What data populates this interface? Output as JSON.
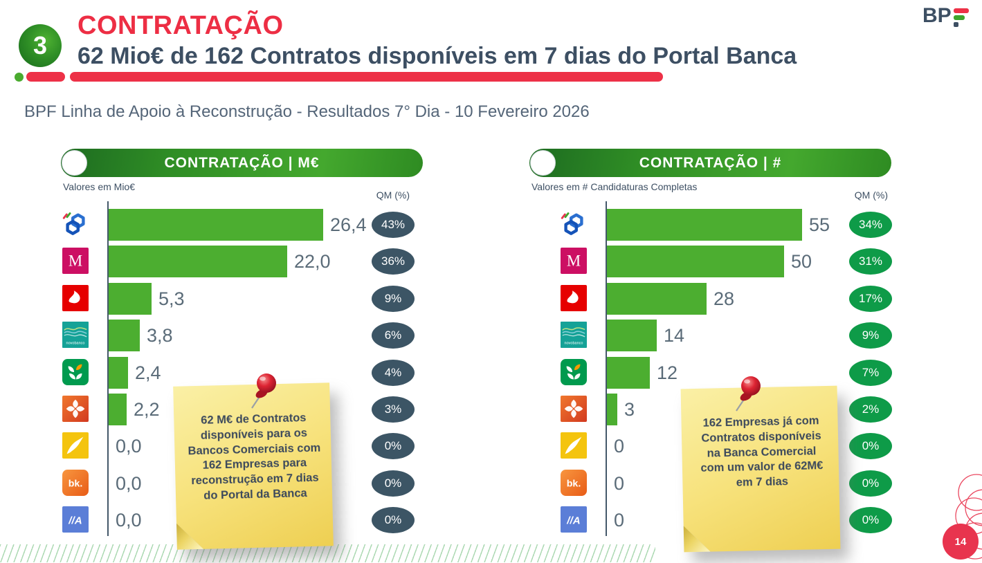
{
  "header": {
    "badge": "3",
    "title": "CONTRATAÇÃO",
    "subtitle": "62 Mio€ de 162 Contratos disponíveis em 7 dias do Portal Banca",
    "context": "BPF Linha de Apoio à Reconstrução - Resultados 7° Dia - 10 Fevereiro 2026",
    "brand": "BP"
  },
  "footer": {
    "page": "14"
  },
  "colors": {
    "accent_red": "#ed3147",
    "navy": "#3d4f63",
    "bar_green": "#4cae30",
    "qm_dark_badge": "#3c5565",
    "qm_green_badge": "#0e9b48",
    "note_yellow": "#f7e27c"
  },
  "chart_data": [
    {
      "type": "bar",
      "title": "CONTRATAÇÃO | M€",
      "units_label": "Valores em Mio€",
      "qm_header": "QM (%)",
      "qm_style": "dark",
      "xlim": [
        0,
        26.4
      ],
      "note": "62 M€ de Contratos disponíveis para os Bancos Comerciais com 162 Empresas para reconstrução em 7 dias do Portal da Banca",
      "banks": [
        {
          "name": "Caixa Geral de Depósitos",
          "icon": "cgd-logo",
          "value": 26.4,
          "label": "26,4",
          "qm": "43%"
        },
        {
          "name": "Millennium bcp",
          "icon": "millennium-logo",
          "value": 22.0,
          "label": "22,0",
          "qm": "36%"
        },
        {
          "name": "Santander",
          "icon": "santander-logo",
          "value": 5.3,
          "label": "5,3",
          "qm": "9%"
        },
        {
          "name": "Novo Banco",
          "icon": "novobanco-logo",
          "value": 3.8,
          "label": "3,8",
          "qm": "6%"
        },
        {
          "name": "Crédito Agrícola",
          "icon": "credito-agricola-logo",
          "value": 2.4,
          "label": "2,4",
          "qm": "4%"
        },
        {
          "name": "Montepio",
          "icon": "montepio-logo",
          "value": 2.2,
          "label": "2,2",
          "qm": "3%"
        },
        {
          "name": "EuroBic",
          "icon": "eurobic-logo",
          "value": 0.0,
          "label": "0,0",
          "qm": "0%"
        },
        {
          "name": "Bankinter",
          "icon": "bankinter-logo",
          "value": 0.0,
          "label": "0,0",
          "qm": "0%"
        },
        {
          "name": "Abanca",
          "icon": "abanca-logo",
          "value": 0.0,
          "label": "0,0",
          "qm": "0%"
        }
      ]
    },
    {
      "type": "bar",
      "title": "CONTRATAÇÃO | #",
      "units_label": "Valores em # Candidaturas Completas",
      "qm_header": "QM (%)",
      "qm_style": "green",
      "xlim": [
        0,
        55
      ],
      "note": "162 Empresas já com Contratos disponíveis na Banca Comercial com um valor de 62M€ em 7 dias",
      "banks": [
        {
          "name": "Caixa Geral de Depósitos",
          "icon": "cgd-logo",
          "value": 55,
          "label": "55",
          "qm": "34%"
        },
        {
          "name": "Millennium bcp",
          "icon": "millennium-logo",
          "value": 50,
          "label": "50",
          "qm": "31%"
        },
        {
          "name": "Santander",
          "icon": "santander-logo",
          "value": 28,
          "label": "28",
          "qm": "17%"
        },
        {
          "name": "Novo Banco",
          "icon": "novobanco-logo",
          "value": 14,
          "label": "14",
          "qm": "9%"
        },
        {
          "name": "Crédito Agrícola",
          "icon": "credito-agricola-logo",
          "value": 12,
          "label": "12",
          "qm": "7%"
        },
        {
          "name": "Montepio",
          "icon": "montepio-logo",
          "value": 3,
          "label": "3",
          "qm": "2%"
        },
        {
          "name": "EuroBic",
          "icon": "eurobic-logo",
          "value": 0,
          "label": "0",
          "qm": "0%"
        },
        {
          "name": "Bankinter",
          "icon": "bankinter-logo",
          "value": 0,
          "label": "0",
          "qm": "0%"
        },
        {
          "name": "Abanca",
          "icon": "abanca-logo",
          "value": 0,
          "label": "0",
          "qm": "0%"
        }
      ]
    }
  ]
}
